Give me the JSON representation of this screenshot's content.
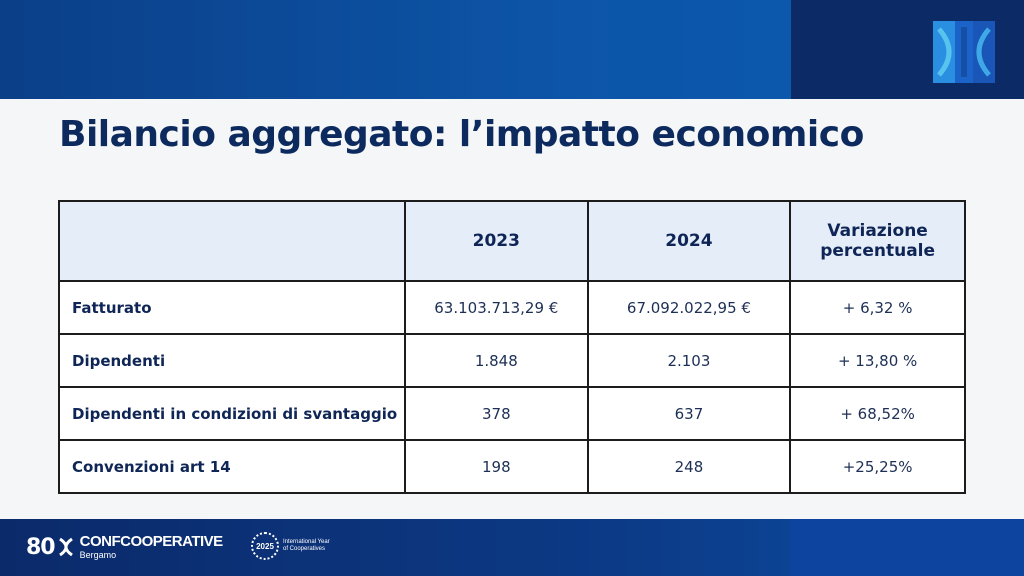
{
  "slide": {
    "title": "Bilancio aggregato: l’impatto economico"
  },
  "colors": {
    "brand_blue": "#0d55a8",
    "brand_navy": "#0c2a66",
    "title_color": "#0c2a5e",
    "header_bg": "#e4edf8"
  },
  "table": {
    "headers": [
      "",
      "2023",
      "2024",
      "Variazione percentuale"
    ],
    "rows": [
      {
        "label": "Fatturato",
        "y2023": "63.103.713,29 €",
        "y2024": "67.092.022,95 €",
        "variation": "+ 6,32 %"
      },
      {
        "label": "Dipendenti",
        "y2023": "1.848",
        "y2024": "2.103",
        "variation": "+ 13,80 %"
      },
      {
        "label": "Dipendenti in condizioni di svantaggio",
        "y2023": "378",
        "y2024": "637",
        "variation": "+ 68,52%"
      },
      {
        "label": "Convenzioni art 14",
        "y2023": "198",
        "y2024": "248",
        "variation": "+25,25%"
      }
    ]
  },
  "footer": {
    "logo_mark": "80",
    "logo_name": "CONFCOOPERATIVE",
    "logo_city": "Bergamo",
    "badge_year": "2025",
    "badge_line1": "International Year",
    "badge_line2": "of Cooperatives"
  },
  "icons": {
    "brand_mark": "confcooperative-mark-icon",
    "badge": "iyc-2025-badge-icon"
  }
}
